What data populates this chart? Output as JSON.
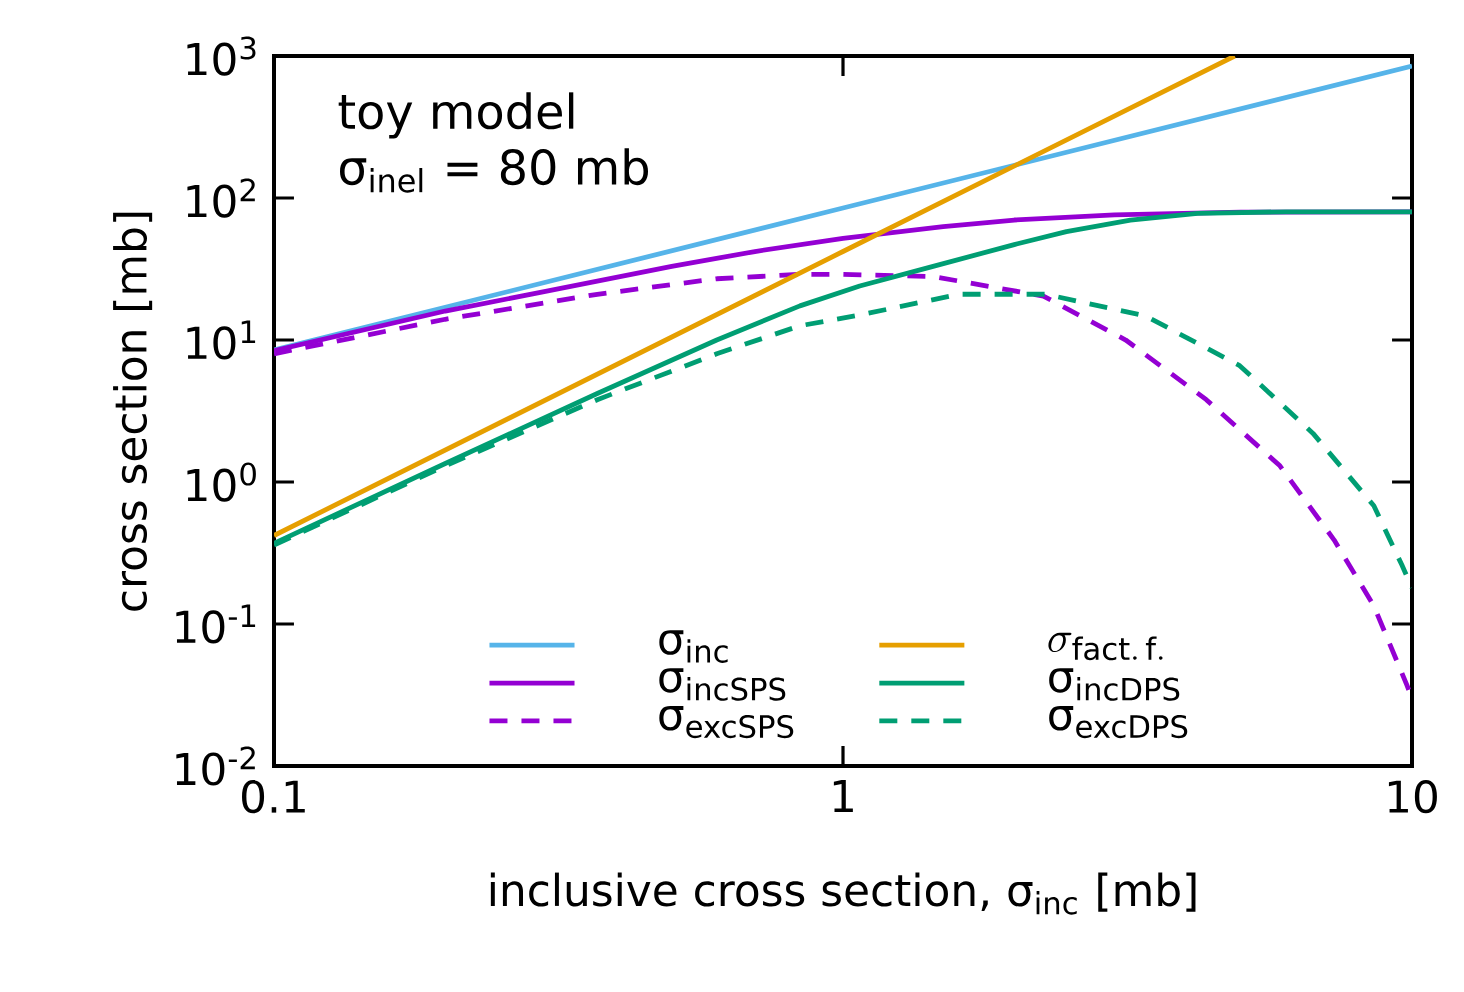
{
  "chart_data": {
    "type": "line",
    "xlabel": "inclusive cross section, σ$_{inc}$ [mb]",
    "ylabel": "cross section [mb]",
    "log": "xy",
    "xlim": [
      0.1,
      10
    ],
    "ylim": [
      0.01,
      1000
    ],
    "xticks": [
      0.1,
      1,
      10
    ],
    "yticks": [
      {
        "value": 0.01,
        "label": "10$^{-2}$"
      },
      {
        "value": 0.1,
        "label": "10$^{-1}$"
      },
      {
        "value": 1,
        "label": "10$^{0}$"
      },
      {
        "value": 10,
        "label": "10$^{1}$"
      },
      {
        "value": 100,
        "label": "10$^{2}$"
      },
      {
        "value": 1000,
        "label": "10$^{3}$"
      }
    ],
    "legend": "bottom",
    "marker": "none",
    "annotations": [
      "toy model",
      "σ$_{inel}$ = 80 mb"
    ],
    "series": [
      {
        "name": "σ$_{inc}$",
        "color": "#56b4e9",
        "line_style": "solid",
        "x": [
          0.1,
          1,
          10
        ],
        "values": [
          8.5,
          85,
          850
        ]
      },
      {
        "name": "σ$_{incSPS}$",
        "color": "#9400d3",
        "line_style": "solid",
        "x": [
          0.1,
          0.2,
          0.3,
          0.5,
          0.7,
          1,
          1.5,
          2,
          3,
          5,
          10
        ],
        "values": [
          8.4,
          16,
          22,
          33,
          42,
          52,
          63,
          70,
          76,
          79.5,
          80
        ]
      },
      {
        "name": "σ$_{excSPS}$",
        "color": "#9400d3",
        "line_style": "dashed",
        "x": [
          0.1,
          0.2,
          0.37,
          0.6,
          0.84,
          0.99,
          1.44,
          2.25,
          3.14,
          4.35,
          5.86,
          7.3,
          8.57,
          9.8,
          10
        ],
        "values": [
          8.0,
          14,
          21,
          27,
          29,
          29,
          28,
          20.4,
          10,
          3.8,
          1.3,
          0.39,
          0.134,
          0.037,
          0.03
        ]
      },
      {
        "name": "\\sigma_{\\mathrm{fact.\\,f.}}",
        "color": "#e69f00",
        "line_style": "solid",
        "x": [
          0.1,
          1,
          4.88
        ],
        "values": [
          0.42,
          42,
          1000
        ]
      },
      {
        "name": "σ$_{incDPS}$",
        "color": "#009e73",
        "line_style": "solid",
        "x": [
          0.1,
          0.2,
          0.37,
          0.6,
          0.84,
          1.07,
          1.44,
          2,
          2.47,
          3.2,
          4.2,
          6,
          10
        ],
        "values": [
          0.37,
          1.35,
          4.2,
          10,
          17.4,
          24,
          33,
          47,
          58,
          70,
          78,
          80,
          80
        ]
      },
      {
        "name": "σ$_{excDPS}$",
        "color": "#009e73",
        "line_style": "dashed",
        "x": [
          0.1,
          0.2,
          0.37,
          0.6,
          0.84,
          1.07,
          1.6,
          2.27,
          3.4,
          4.98,
          6.7,
          8.57,
          9.6,
          10
        ],
        "values": [
          0.36,
          1.3,
          3.8,
          8,
          12.6,
          15,
          21,
          21,
          14.8,
          6.6,
          2.2,
          0.68,
          0.26,
          0.18
        ]
      }
    ]
  }
}
